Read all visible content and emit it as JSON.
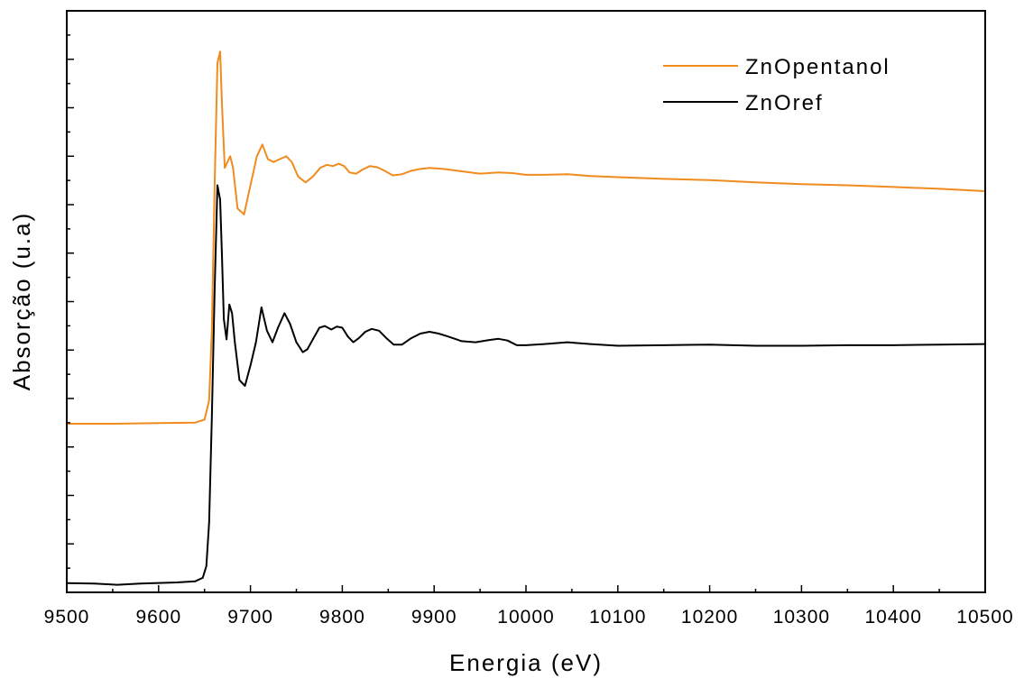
{
  "chart_data": {
    "type": "line",
    "title": "",
    "xlabel": "Energia (eV)",
    "ylabel": "Absorção (u.a)",
    "xlim": [
      9500,
      10500
    ],
    "ylim": [
      0,
      1
    ],
    "x_ticks": [
      "9500",
      "9600",
      "9700",
      "9800",
      "9900",
      "10000",
      "10100",
      "10200",
      "10300",
      "10400",
      "10500"
    ],
    "y_tick_labels_shown": false,
    "grid": false,
    "legend_position": "top-right",
    "series": [
      {
        "name": "ZnOpentanol",
        "color": "#f08c1e",
        "x": [
          9500,
          9550,
          9600,
          9640,
          9650,
          9655,
          9658,
          9661,
          9664,
          9667,
          9669,
          9672,
          9675,
          9678,
          9681,
          9686,
          9693,
          9700,
          9707,
          9713,
          9719,
          9725,
          9732,
          9739,
          9745,
          9752,
          9760,
          9768,
          9776,
          9783,
          9790,
          9796,
          9802,
          9808,
          9815,
          9822,
          9830,
          9838,
          9846,
          9855,
          9865,
          9875,
          9885,
          9895,
          9910,
          9930,
          9950,
          9970,
          9985,
          10000,
          10020,
          10045,
          10070,
          10100,
          10150,
          10200,
          10250,
          10300,
          10350,
          10400,
          10450,
          10500
        ],
        "y": [
          0.29,
          0.29,
          0.291,
          0.292,
          0.297,
          0.33,
          0.45,
          0.7,
          0.91,
          0.93,
          0.84,
          0.73,
          0.74,
          0.75,
          0.73,
          0.66,
          0.65,
          0.7,
          0.75,
          0.77,
          0.745,
          0.74,
          0.745,
          0.75,
          0.74,
          0.715,
          0.705,
          0.715,
          0.73,
          0.735,
          0.733,
          0.737,
          0.733,
          0.722,
          0.72,
          0.727,
          0.733,
          0.731,
          0.725,
          0.717,
          0.719,
          0.725,
          0.728,
          0.73,
          0.728,
          0.724,
          0.72,
          0.722,
          0.721,
          0.718,
          0.718,
          0.719,
          0.716,
          0.714,
          0.711,
          0.709,
          0.705,
          0.702,
          0.7,
          0.697,
          0.694,
          0.69
        ]
      },
      {
        "name": "ZnOref",
        "color": "#000000",
        "x": [
          9500,
          9530,
          9555,
          9580,
          9620,
          9640,
          9648,
          9652,
          9655,
          9658,
          9661,
          9664,
          9667,
          9669,
          9671,
          9674,
          9677,
          9680,
          9683,
          9688,
          9694,
          9700,
          9706,
          9712,
          9718,
          9724,
          9730,
          9737,
          9743,
          9750,
          9757,
          9762,
          9768,
          9775,
          9781,
          9788,
          9794,
          9800,
          9806,
          9812,
          9818,
          9825,
          9832,
          9840,
          9848,
          9856,
          9865,
          9875,
          9885,
          9895,
          9905,
          9915,
          9930,
          9945,
          9960,
          9970,
          9980,
          9990,
          10000,
          10020,
          10045,
          10070,
          10100,
          10150,
          10200,
          10250,
          10300,
          10350,
          10400,
          10450,
          10500
        ],
        "y": [
          0.016,
          0.015,
          0.013,
          0.015,
          0.017,
          0.019,
          0.025,
          0.045,
          0.12,
          0.3,
          0.52,
          0.7,
          0.675,
          0.58,
          0.47,
          0.435,
          0.495,
          0.48,
          0.43,
          0.365,
          0.355,
          0.39,
          0.43,
          0.49,
          0.45,
          0.43,
          0.455,
          0.48,
          0.462,
          0.43,
          0.413,
          0.418,
          0.435,
          0.455,
          0.458,
          0.452,
          0.457,
          0.455,
          0.44,
          0.43,
          0.437,
          0.448,
          0.453,
          0.45,
          0.437,
          0.426,
          0.426,
          0.437,
          0.445,
          0.448,
          0.445,
          0.44,
          0.432,
          0.43,
          0.434,
          0.436,
          0.433,
          0.425,
          0.425,
          0.427,
          0.43,
          0.427,
          0.424,
          0.425,
          0.426,
          0.424,
          0.424,
          0.425,
          0.425,
          0.426,
          0.427
        ]
      }
    ]
  }
}
